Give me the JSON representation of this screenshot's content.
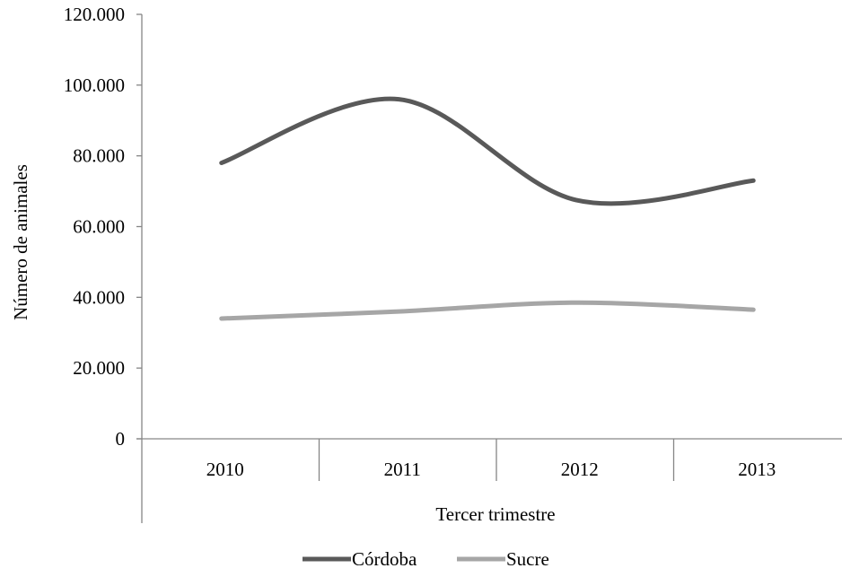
{
  "chart_data": {
    "type": "line",
    "title": "",
    "xlabel": "Tercer trimestre",
    "ylabel": "Número de animales",
    "categories": [
      "2010",
      "2011",
      "2012",
      "2013"
    ],
    "y_ticks": [
      "0",
      "20.000",
      "40.000",
      "60.000",
      "80.000",
      "100.000",
      "120.000"
    ],
    "ylim": [
      0,
      120000
    ],
    "grid": false,
    "legend_position": "bottom",
    "smooth": true,
    "series": [
      {
        "name": "Córdoba",
        "values": [
          78000,
          96000,
          67500,
          73000
        ],
        "color": "#595959"
      },
      {
        "name": "Sucre",
        "values": [
          34000,
          36000,
          38500,
          36500
        ],
        "color": "#a6a6a6"
      }
    ]
  }
}
